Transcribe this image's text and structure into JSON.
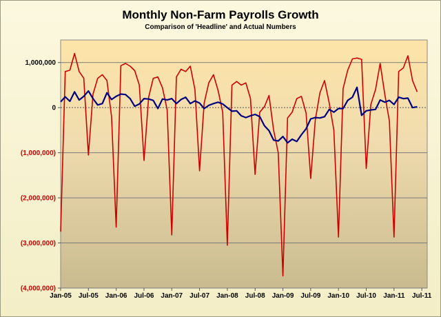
{
  "chart_data": {
    "type": "line",
    "title": "Monthly Non-Farm Payrolls Growth",
    "subtitle": "Comparison of 'Headline' and Actual Numbers",
    "ylim": [
      -4000000,
      1500000
    ],
    "yticks": [
      {
        "value": 1000000,
        "label": "1,000,000"
      },
      {
        "value": 0,
        "label": "0"
      },
      {
        "value": -1000000,
        "label": "(1,000,000)"
      },
      {
        "value": -2000000,
        "label": "(2,000,000)"
      },
      {
        "value": -3000000,
        "label": "(3,000,000)"
      },
      {
        "value": -4000000,
        "label": "(4,000,000)"
      }
    ],
    "xticks": [
      "Jan-05",
      "Jul-05",
      "Jan-06",
      "Jul-06",
      "Jan-07",
      "Jul-07",
      "Jan-08",
      "Jul-08",
      "Jan-09",
      "Jul-09",
      "Jan-10",
      "Jul-10",
      "Jan-11",
      "Jul-11"
    ],
    "x_start": "Jan-05",
    "grid": true,
    "legend": "none",
    "colors": {
      "actual": "#cc0000",
      "headline": "#00007f"
    },
    "series": [
      {
        "key": "actual",
        "values": [
          -2750000,
          800000,
          830000,
          1200000,
          800000,
          650000,
          -1050000,
          300000,
          650000,
          730000,
          600000,
          -200000,
          -2650000,
          930000,
          980000,
          920000,
          820000,
          500000,
          -1170000,
          230000,
          650000,
          680000,
          440000,
          -50000,
          -2820000,
          680000,
          850000,
          800000,
          920000,
          400000,
          -1400000,
          100000,
          550000,
          730000,
          380000,
          -100000,
          -3050000,
          500000,
          580000,
          500000,
          550000,
          200000,
          -1480000,
          -100000,
          20000,
          270000,
          -500000,
          -1000000,
          -3730000,
          -230000,
          -100000,
          200000,
          250000,
          -120000,
          -1570000,
          -270000,
          330000,
          600000,
          100000,
          -500000,
          -2870000,
          420000,
          830000,
          1080000,
          1100000,
          1070000,
          -1350000,
          70000,
          400000,
          980000,
          300000,
          -300000,
          -2870000,
          800000,
          880000,
          1150000,
          600000,
          350000
        ]
      },
      {
        "key": "headline",
        "values": [
          130000,
          240000,
          140000,
          350000,
          170000,
          250000,
          370000,
          200000,
          60000,
          90000,
          330000,
          180000,
          250000,
          300000,
          290000,
          200000,
          30000,
          80000,
          200000,
          190000,
          160000,
          -20000,
          190000,
          170000,
          200000,
          90000,
          180000,
          230000,
          90000,
          150000,
          100000,
          -20000,
          50000,
          90000,
          120000,
          80000,
          0,
          -80000,
          -70000,
          -180000,
          -220000,
          -180000,
          -150000,
          -200000,
          -400000,
          -510000,
          -720000,
          -740000,
          -640000,
          -780000,
          -700000,
          -750000,
          -600000,
          -470000,
          -250000,
          -220000,
          -230000,
          -200000,
          -40000,
          -100000,
          -20000,
          -20000,
          160000,
          230000,
          450000,
          -170000,
          -70000,
          -50000,
          -40000,
          170000,
          120000,
          160000,
          70000,
          230000,
          200000,
          210000,
          0,
          20000
        ]
      }
    ]
  }
}
